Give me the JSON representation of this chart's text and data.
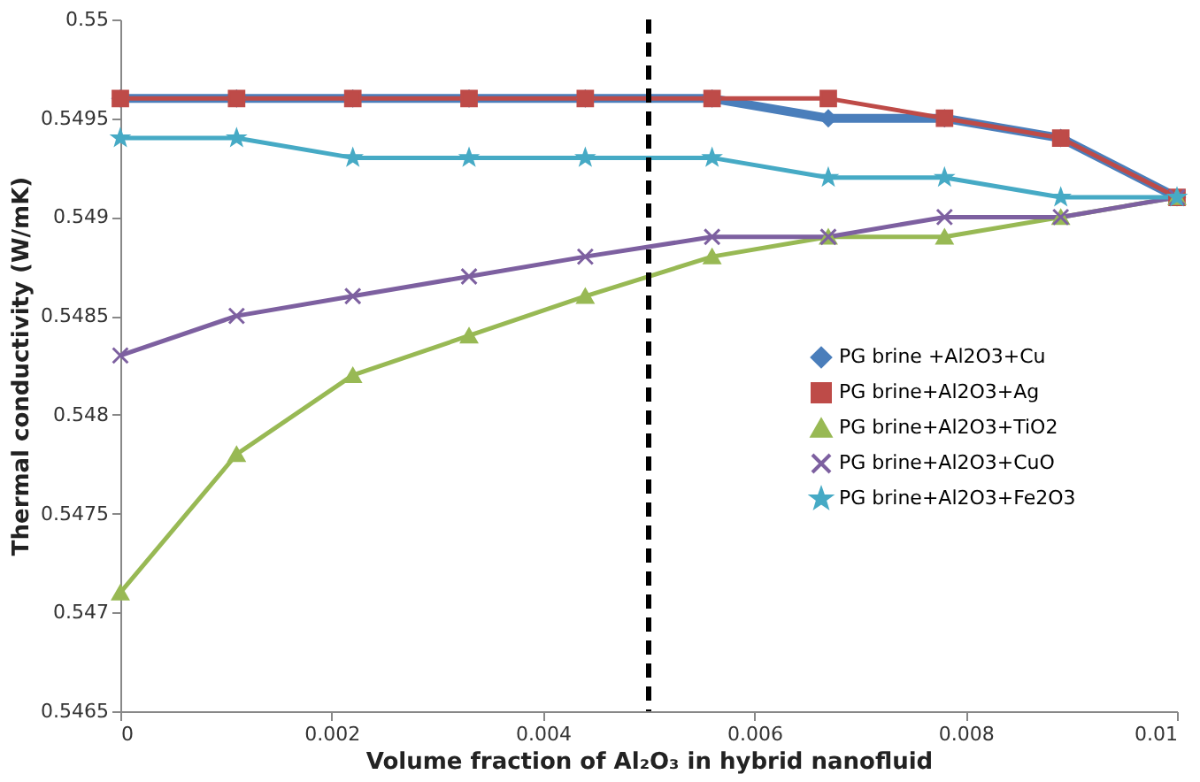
{
  "chart_data": {
    "type": "line",
    "xlabel": "Volume fraction of Al₂O₃ in hybrid nanofluid",
    "ylabel": "Thermal conductivity (W/mK)",
    "x": [
      0,
      0.0011,
      0.0022,
      0.0033,
      0.0044,
      0.0056,
      0.0067,
      0.0078,
      0.0089,
      0.01
    ],
    "series": [
      {
        "name": "PG brine +Al2O3+Cu",
        "color": "#4a7ebb",
        "marker": "diamond",
        "values": [
          0.5496,
          0.5496,
          0.5496,
          0.5496,
          0.5496,
          0.5496,
          0.5495,
          0.5495,
          0.5494,
          0.5491
        ]
      },
      {
        "name": "PG brine+Al2O3+Ag",
        "color": "#be4b48",
        "marker": "square",
        "values": [
          0.5496,
          0.5496,
          0.5496,
          0.5496,
          0.5496,
          0.5496,
          0.5496,
          0.5495,
          0.5494,
          0.5491
        ]
      },
      {
        "name": "PG brine+Al2O3+TiO2",
        "color": "#98b954",
        "marker": "triangle",
        "values": [
          0.5471,
          0.5478,
          0.5482,
          0.5484,
          0.5486,
          0.5488,
          0.5489,
          0.5489,
          0.549,
          0.5491
        ]
      },
      {
        "name": "PG brine+Al2O3+CuO",
        "color": "#7d60a0",
        "marker": "cross",
        "values": [
          0.5483,
          0.5485,
          0.5486,
          0.5487,
          0.5488,
          0.5489,
          0.5489,
          0.549,
          0.549,
          0.5491
        ]
      },
      {
        "name": "PG brine+Al2O3+Fe2O3",
        "color": "#46aac5",
        "marker": "star",
        "values": [
          0.5494,
          0.5494,
          0.5493,
          0.5493,
          0.5493,
          0.5493,
          0.5492,
          0.5492,
          0.5491,
          0.5491
        ]
      }
    ],
    "xlim": [
      0,
      0.01
    ],
    "xticks": [
      0,
      0.002,
      0.004,
      0.006,
      0.008,
      0.01
    ],
    "ylim": [
      0.5465,
      0.55
    ],
    "yticks": [
      0.5465,
      0.547,
      0.5475,
      0.548,
      0.5485,
      0.549,
      0.5495,
      0.55
    ],
    "ref_lines": [
      {
        "axis": "x",
        "value": 0.005,
        "color": "#000000",
        "line_style": "dashed"
      }
    ],
    "grid": false,
    "legend": "right",
    "line_style": "solid"
  }
}
